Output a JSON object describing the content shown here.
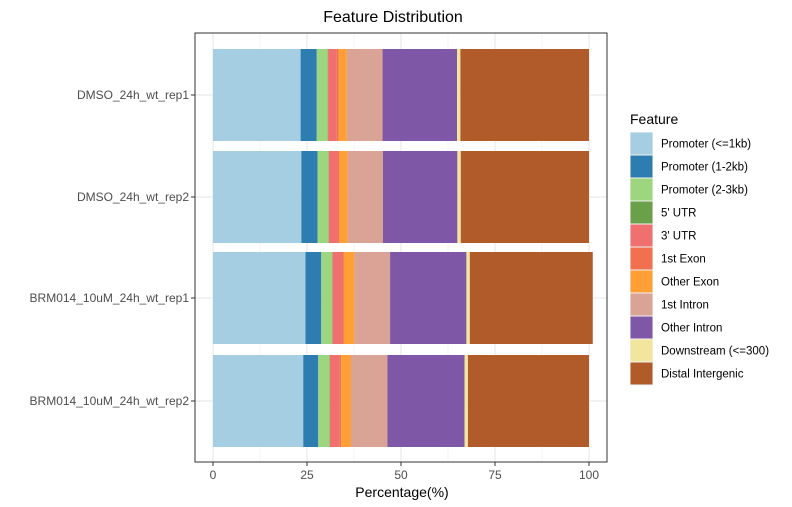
{
  "chart_data": {
    "type": "bar",
    "orientation": "horizontal",
    "stacked": true,
    "title": "Feature Distribution",
    "xlabel": "Percentage(%)",
    "ylabel": "",
    "xlim": [
      0,
      100
    ],
    "xticks": [
      0,
      25,
      50,
      75,
      100
    ],
    "grid": true,
    "legend_title": "Feature",
    "legend_position": "right",
    "categories": [
      "DMSO_24h_wt_rep1",
      "DMSO_24h_wt_rep2",
      "BRM014_10uM_24h_wt_rep1",
      "BRM014_10uM_24h_wt_rep2"
    ],
    "series": [
      {
        "name": "Promoter (<=1kb)",
        "color": "#A6CEE3",
        "values": [
          23.3,
          23.5,
          24.6,
          24.0
        ]
      },
      {
        "name": "Promoter (1-2kb)",
        "color": "#1F78B4",
        "values": [
          4.3,
          4.3,
          4.2,
          4.0
        ]
      },
      {
        "name": "Promoter (2-3kb)",
        "color": "#B2DF8A",
        "values": [
          2.9,
          2.9,
          2.9,
          3.0
        ]
      },
      {
        "name": "5' UTR",
        "color": "#33A02C",
        "values": [
          0.1,
          0.1,
          0.1,
          0.1
        ]
      },
      {
        "name": "3' UTR",
        "color": "#FB9A99",
        "values": [
          2.3,
          2.3,
          2.5,
          2.5
        ]
      },
      {
        "name": "1st Exon",
        "color": "#E31A1C",
        "values": [
          0.5,
          0.5,
          0.5,
          0.5
        ]
      },
      {
        "name": "Other Exon",
        "color": "#FDBF6F",
        "values": [
          2.2,
          2.2,
          2.8,
          2.6
        ]
      },
      {
        "name": "1st Intron",
        "color": "#FF7F00",
        "values": [
          9.5,
          9.4,
          9.5,
          9.7
        ]
      },
      {
        "name": "Other Intron",
        "color": "#CAB2D6",
        "values": [
          19.8,
          19.8,
          20.3,
          20.5
        ]
      },
      {
        "name": "Downstream (<=300)",
        "color": "#6A3D9A",
        "values": [
          0.9,
          0.9,
          0.9,
          0.9
        ]
      },
      {
        "name": "Distal Intergenic",
        "color": "#B15928",
        "values": [
          34.2,
          34.1,
          32.7,
          32.2
        ]
      }
    ]
  },
  "rendered_colors": {
    "Promoter (<=1kb)": "#A6CEE3",
    "Promoter (1-2kb)": "#2E7DB0",
    "Promoter (2-3kb)": "#9ED57F",
    "5' UTR": "#6BA04B",
    "3' UTR": "#F07070",
    "1st Exon": "#F07050",
    "Other Exon": "#FF9F35",
    "1st Intron": "#D9A396",
    "Other Intron": "#7E57A7",
    "Downstream (<=300)": "#F2E59E",
    "Distal Intergenic": "#B15A2A"
  }
}
